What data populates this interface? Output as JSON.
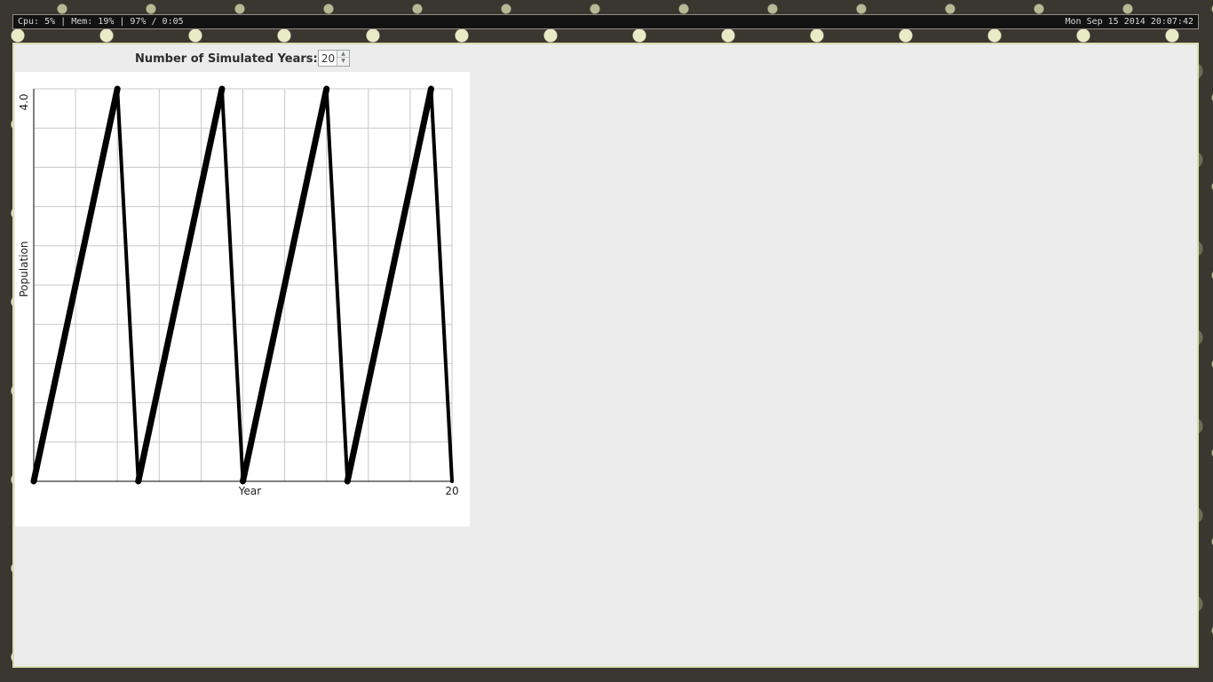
{
  "status_bar": {
    "left_text": "Cpu: 5% | Mem: 19% | 97% / 0:05",
    "right_text": "Mon Sep 15 2014 20:07:42"
  },
  "controls": {
    "years_label": "Number of Simulated Years:",
    "years_value": "20",
    "spin_up_glyph": "▲",
    "spin_down_glyph": "▼"
  },
  "chart_data": {
    "type": "line",
    "xlabel": "Year",
    "ylabel": "Population",
    "xlim": [
      0,
      20
    ],
    "ylim": [
      0,
      4.0
    ],
    "x_ticks_labeled": [
      {
        "value": 20,
        "label": "20"
      }
    ],
    "y_ticks_labeled": [
      {
        "value": 4.0,
        "label": "4.0"
      }
    ],
    "grid": true,
    "x_grid_step": 2,
    "y_grid_step": 0.4,
    "line_color": "#000000",
    "series": [
      {
        "x": [
          0,
          4,
          5,
          9,
          10,
          14,
          15,
          19,
          20
        ],
        "y": [
          0,
          4.0,
          0,
          4.0,
          0,
          4.0,
          0,
          4.0,
          0
        ]
      }
    ]
  }
}
